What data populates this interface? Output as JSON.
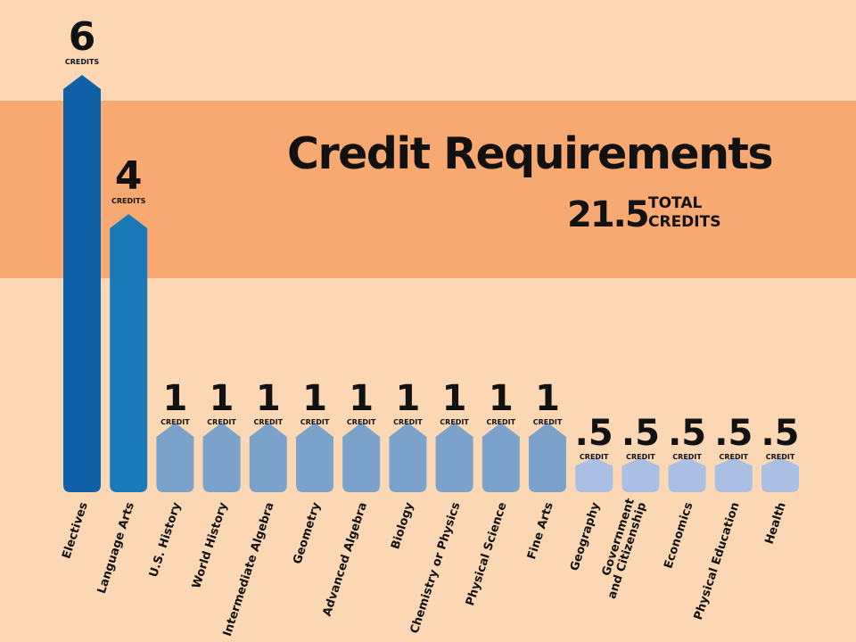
{
  "header": {
    "title": "Credit Requirements",
    "total_value": "21.5",
    "total_label_line1": "TOTAL",
    "total_label_line2": "CREDITS"
  },
  "chart_data": {
    "type": "bar",
    "title": "Credit Requirements",
    "subtitle": "21.5 TOTAL CREDITS",
    "categories": [
      "Electives",
      "Language Arts",
      "U.S. History",
      "World History",
      "Intermediate Algebra",
      "Geometry",
      "Advanced Algebra",
      "Biology",
      "Chemistry or Physics",
      "Physical Science",
      "Fine Arts",
      "Geography",
      "Government and Citizenship",
      "Economics",
      "Physical Education",
      "Health"
    ],
    "category_lines": [
      [
        "Electives"
      ],
      [
        "Language Arts"
      ],
      [
        "U.S. History"
      ],
      [
        "World History"
      ],
      [
        "Intermediate Algebra"
      ],
      [
        "Geometry"
      ],
      [
        "Advanced Algebra"
      ],
      [
        "Biology"
      ],
      [
        "Chemistry or Physics"
      ],
      [
        "Physical Science"
      ],
      [
        "Fine Arts"
      ],
      [
        "Geography"
      ],
      [
        "Government",
        "and Citizenship"
      ],
      [
        "Economics"
      ],
      [
        "Physical Education"
      ],
      [
        "Health"
      ]
    ],
    "values": [
      6,
      4,
      1,
      1,
      1,
      1,
      1,
      1,
      1,
      1,
      1,
      0.5,
      0.5,
      0.5,
      0.5,
      0.5
    ],
    "value_labels": [
      "6",
      "4",
      "1",
      "1",
      "1",
      "1",
      "1",
      "1",
      "1",
      "1",
      "1",
      ".5",
      ".5",
      ".5",
      ".5",
      ".5"
    ],
    "unit_labels": [
      "CREDITS",
      "CREDITS",
      "CREDIT",
      "CREDIT",
      "CREDIT",
      "CREDIT",
      "CREDIT",
      "CREDIT",
      "CREDIT",
      "CREDIT",
      "CREDIT",
      "CREDIT",
      "CREDIT",
      "CREDIT",
      "CREDIT",
      "CREDIT"
    ],
    "colors": {
      "background": "#fbd7b4",
      "band": "#f8a871",
      "bar_6": "#0f60a6",
      "bar_4": "#1a7ab7",
      "bar_1": "#7aa2cb",
      "bar_half": "#a9c0e4",
      "text": "#111111"
    }
  }
}
